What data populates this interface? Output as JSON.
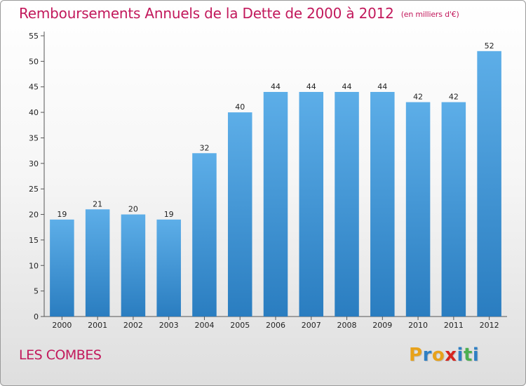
{
  "header": {
    "title": "Remboursements Annuels de la Dette de 2000 à 2012",
    "unit": "(en milliers d'€)"
  },
  "footer": {
    "commune": "LES COMBES",
    "logo_letters": [
      "P",
      "r",
      "o",
      "x",
      "i",
      "t",
      "i"
    ],
    "logo_colors": [
      "#e8a21a",
      "#2e7fc4",
      "#e8a21a",
      "#d6261f",
      "#2e7fc4",
      "#4caf50",
      "#2e7fc4"
    ]
  },
  "chart_data": {
    "type": "bar",
    "title": "Remboursements Annuels de la Dette de 2000 à 2012",
    "xlabel": "",
    "ylabel": "",
    "categories": [
      "2000",
      "2001",
      "2002",
      "2003",
      "2004",
      "2005",
      "2006",
      "2007",
      "2008",
      "2009",
      "2010",
      "2011",
      "2012"
    ],
    "values": [
      19,
      21,
      20,
      19,
      32,
      40,
      44,
      44,
      44,
      44,
      42,
      42,
      52
    ],
    "ylim": [
      0,
      55
    ],
    "yticks": [
      0,
      5,
      10,
      15,
      20,
      25,
      30,
      35,
      40,
      45,
      50,
      55
    ],
    "grid": false,
    "bar_color_top": "#5daee8",
    "bar_color_bottom": "#2a7dc0"
  }
}
